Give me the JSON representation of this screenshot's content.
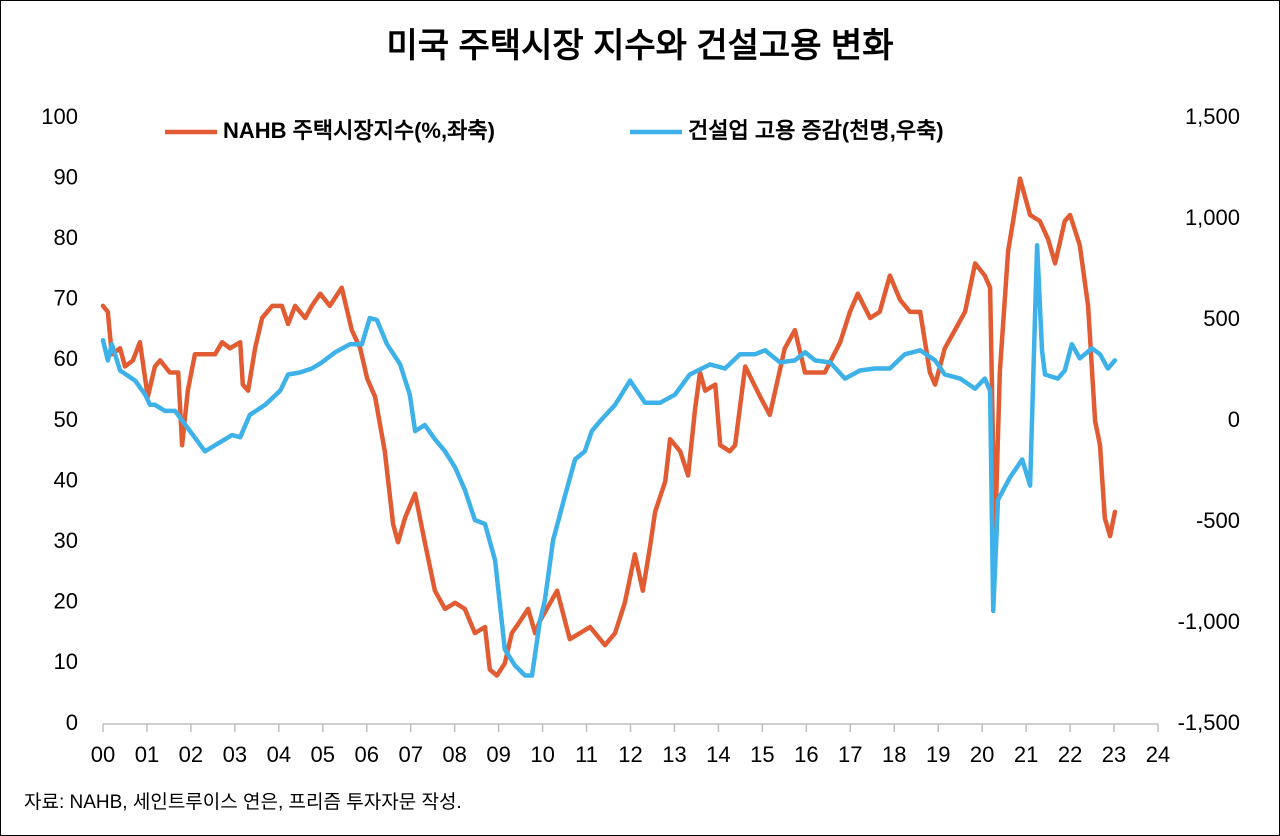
{
  "chart_data": {
    "type": "line",
    "title": "미국 주택시장 지수와 건설고용 변화",
    "source": "자료: NAHB, 세인트루이스 연은, 프리즘 투자자문 작성.",
    "xlim": [
      0,
      24
    ],
    "xticks": [
      {
        "value": 0,
        "label": "00"
      },
      {
        "value": 1,
        "label": "01"
      },
      {
        "value": 2,
        "label": "02"
      },
      {
        "value": 3,
        "label": "03"
      },
      {
        "value": 4,
        "label": "04"
      },
      {
        "value": 5,
        "label": "05"
      },
      {
        "value": 6,
        "label": "06"
      },
      {
        "value": 7,
        "label": "07"
      },
      {
        "value": 8,
        "label": "08"
      },
      {
        "value": 9,
        "label": "09"
      },
      10,
      11,
      12,
      13,
      14,
      15,
      16,
      17,
      18,
      19,
      20,
      21,
      22,
      23,
      24
    ],
    "ylim": [
      0,
      100
    ],
    "yticks": [
      0,
      10,
      20,
      30,
      40,
      50,
      60,
      70,
      80,
      90,
      100
    ],
    "y2lim": [
      -1500,
      1500
    ],
    "y2ticks": [
      {
        "value": -1500,
        "label": "-1,500"
      },
      {
        "value": -1000,
        "label": "-1,000"
      },
      -500,
      0,
      500,
      {
        "value": 1000,
        "label": "1,000"
      },
      {
        "value": 1500,
        "label": "1,500"
      }
    ],
    "grid": false,
    "legend": "top",
    "series": [
      {
        "name": "NAHB 주택시장지수(%,좌축)",
        "color": "#e15c33",
        "x": [
          0,
          0.11,
          0.2,
          0.39,
          0.5,
          0.68,
          0.84,
          1.02,
          1.18,
          1.3,
          1.52,
          1.71,
          1.8,
          1.93,
          2.09,
          2.21,
          2.55,
          2.71,
          2.89,
          3.12,
          3.18,
          3.3,
          3.46,
          3.62,
          3.85,
          4.07,
          4.21,
          4.37,
          4.6,
          4.75,
          4.94,
          5.16,
          5.43,
          5.66,
          5.85,
          6.01,
          6.19,
          6.41,
          6.6,
          6.71,
          6.87,
          7.1,
          7.32,
          7.55,
          7.78,
          8.01,
          8.23,
          8.46,
          8.69,
          8.8,
          8.96,
          9.14,
          9.3,
          9.49,
          9.67,
          9.83,
          9.94,
          10.33,
          10.62,
          11.08,
          11.42,
          11.65,
          11.87,
          12.1,
          12.28,
          12.44,
          12.56,
          12.79,
          12.9,
          13.13,
          13.31,
          13.47,
          13.58,
          13.7,
          13.93,
          14.04,
          14.26,
          14.38,
          14.61,
          14.95,
          15.17,
          15.51,
          15.74,
          15.97,
          16.42,
          16.77,
          16.99,
          17.17,
          17.45,
          17.67,
          17.9,
          18.13,
          18.36,
          18.59,
          18.81,
          18.93,
          19.15,
          19.38,
          19.61,
          19.84,
          20.06,
          20.18,
          20.29,
          20.4,
          20.59,
          20.75,
          20.86,
          21.09,
          21.31,
          21.5,
          21.66,
          21.88,
          22.0,
          22.22,
          22.41,
          22.57,
          22.68,
          22.79,
          22.91,
          23.02
        ],
        "values": [
          69,
          68,
          61,
          62,
          59,
          60,
          63,
          54,
          59,
          60,
          58,
          58,
          46,
          55,
          61,
          61,
          61,
          63,
          62,
          63,
          56,
          55,
          62,
          67,
          69,
          69,
          66,
          69,
          67,
          69,
          71,
          69,
          72,
          65,
          62,
          57,
          54,
          45,
          33,
          30,
          34,
          38,
          30,
          22,
          19,
          20,
          19,
          15,
          16,
          9,
          8,
          10,
          15,
          17,
          19,
          15,
          17,
          22,
          14,
          16,
          13,
          15,
          20,
          28,
          22,
          29,
          35,
          40,
          47,
          45,
          41,
          52,
          58,
          55,
          56,
          46,
          45,
          46,
          59,
          54,
          51,
          62,
          65,
          58,
          58,
          63,
          68,
          71,
          67,
          68,
          74,
          70,
          68,
          68,
          58,
          56,
          62,
          65,
          68,
          76,
          74,
          72,
          30,
          58,
          78,
          85,
          90,
          84,
          83,
          80,
          76,
          83,
          84,
          79,
          69,
          50,
          46,
          34,
          31,
          35
        ]
      },
      {
        "name": "건설업 고용 증감(천명,우축)",
        "color": "#3db1e8",
        "axis": "y2",
        "x": [
          0,
          0.11,
          0.2,
          0.39,
          0.73,
          0.96,
          1.07,
          1.18,
          1.41,
          1.64,
          1.98,
          2.32,
          2.55,
          2.78,
          2.93,
          3.12,
          3.34,
          3.69,
          4.03,
          4.21,
          4.48,
          4.75,
          4.98,
          5.28,
          5.62,
          5.89,
          6.07,
          6.23,
          6.46,
          6.76,
          6.98,
          7.1,
          7.32,
          7.55,
          7.78,
          8.01,
          8.23,
          8.46,
          8.69,
          8.92,
          9.14,
          9.37,
          9.6,
          9.76,
          9.94,
          10.05,
          10.24,
          10.51,
          10.74,
          10.96,
          11.12,
          11.31,
          11.65,
          11.99,
          12.33,
          12.67,
          13.01,
          13.35,
          13.81,
          14.15,
          14.49,
          14.83,
          15.06,
          15.4,
          15.74,
          15.97,
          16.2,
          16.54,
          16.88,
          17.22,
          17.56,
          17.9,
          18.24,
          18.59,
          18.93,
          19.15,
          19.5,
          19.84,
          20.06,
          20.18,
          20.25,
          20.36,
          20.63,
          20.91,
          21.09,
          21.25,
          21.36,
          21.43,
          21.72,
          21.88,
          22.04,
          22.22,
          22.5,
          22.68,
          22.86,
          23.02
        ],
        "values": [
          400,
          300,
          380,
          250,
          200,
          130,
          80,
          80,
          50,
          50,
          -50,
          -150,
          -120,
          -90,
          -70,
          -80,
          30,
          80,
          150,
          230,
          240,
          260,
          290,
          340,
          380,
          380,
          510,
          500,
          380,
          280,
          130,
          -50,
          -20,
          -90,
          -150,
          -230,
          -340,
          -490,
          -510,
          -690,
          -1130,
          -1210,
          -1260,
          -1260,
          -990,
          -890,
          -590,
          -370,
          -190,
          -150,
          -50,
          0,
          80,
          200,
          90,
          90,
          130,
          230,
          280,
          260,
          330,
          330,
          350,
          290,
          300,
          340,
          300,
          290,
          210,
          250,
          260,
          260,
          330,
          350,
          300,
          230,
          210,
          160,
          210,
          150,
          -940,
          -390,
          -280,
          -190,
          -320,
          870,
          350,
          230,
          210,
          250,
          380,
          310,
          360,
          330,
          260,
          300
        ]
      }
    ]
  }
}
